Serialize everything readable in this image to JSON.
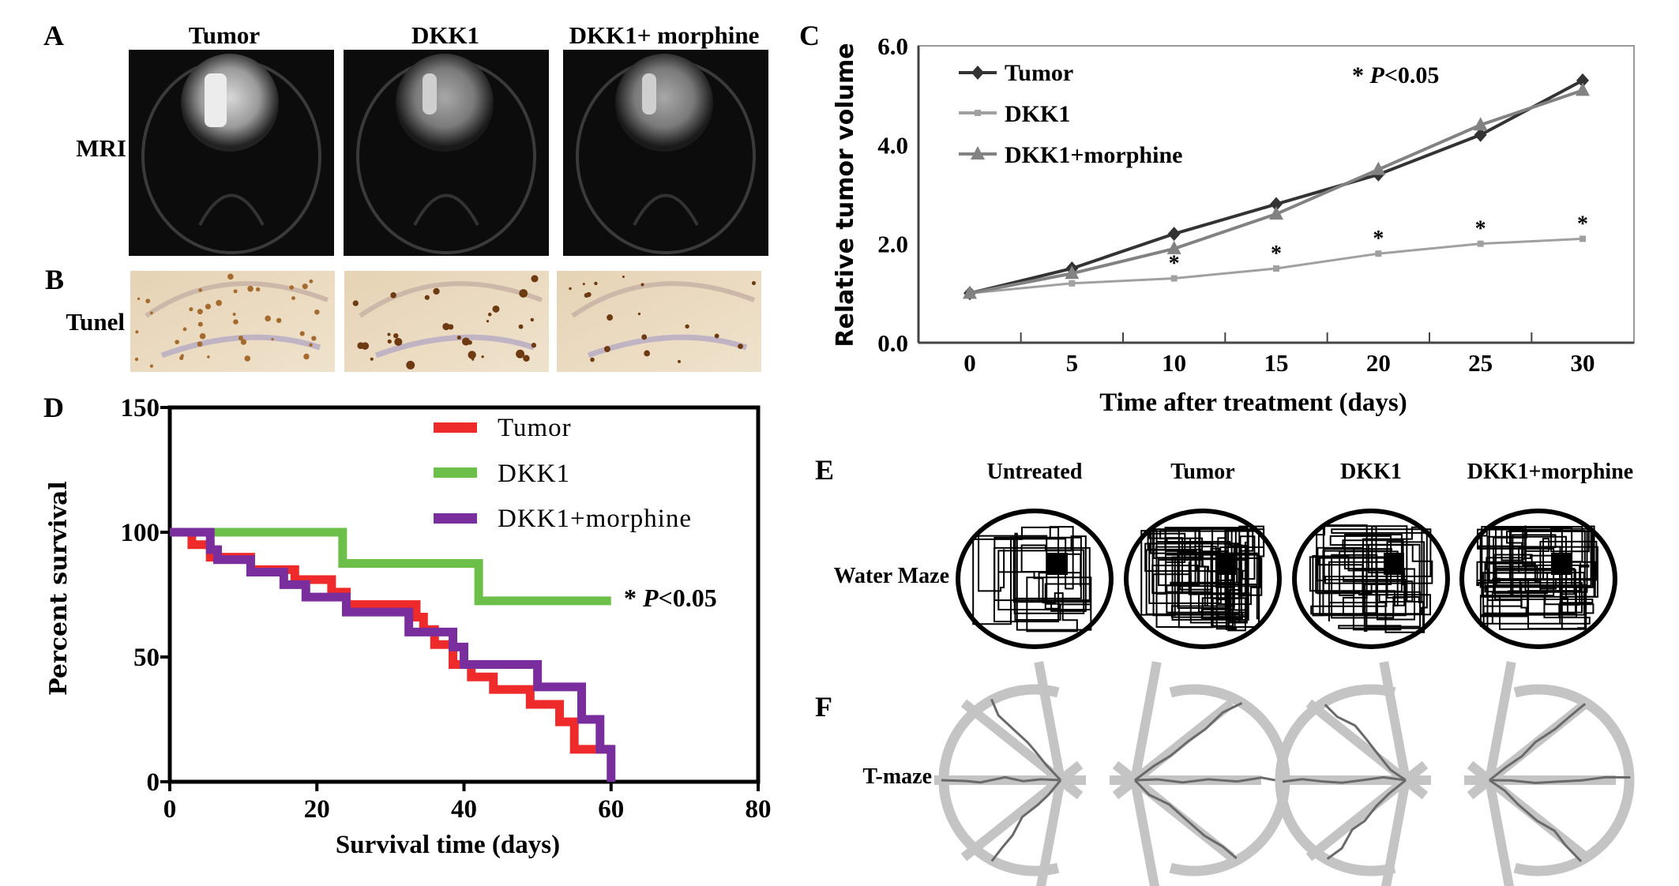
{
  "panel_labels": {
    "a": "A",
    "b": "B",
    "c": "C",
    "d": "D",
    "e": "E",
    "f": "F"
  },
  "panel_a": {
    "columns": [
      "Tumor",
      "DKK1",
      "DKK1+ morphine"
    ],
    "row_label": "MRI"
  },
  "panel_b": {
    "row_label": "Tunel"
  },
  "panel_e": {
    "columns": [
      "Untreated",
      "Tumor",
      "DKK1",
      "DKK1+morphine"
    ],
    "row_label": "Water Maze"
  },
  "panel_f": {
    "row_label": "T-maze"
  },
  "chart_data": [
    {
      "panel": "C",
      "type": "line",
      "xlabel": "Time after treatment (days)",
      "ylabel": "Relative tumor volume",
      "x": [
        0,
        5,
        10,
        15,
        20,
        25,
        30
      ],
      "x_tick_labels": [
        "0",
        "5",
        "10",
        "15",
        "20",
        "25",
        "30"
      ],
      "ylim": [
        0,
        6
      ],
      "y_ticks": [
        0,
        2,
        4,
        6
      ],
      "y_tick_labels": [
        "0.0",
        "2.0",
        "4.0",
        "6.0"
      ],
      "legend_position": "top-left",
      "annotation": {
        "star": "*",
        "p": "P",
        "rest": "<0.05"
      },
      "significance_marker": "*",
      "significant_x": [
        10,
        15,
        20,
        25,
        30
      ],
      "series": [
        {
          "name": "Tumor",
          "marker": "diamond",
          "color": "#333333",
          "values": [
            1.0,
            1.5,
            2.2,
            2.8,
            3.4,
            4.2,
            5.3
          ]
        },
        {
          "name": "DKK1",
          "marker": "square",
          "color": "#a0a0a0",
          "values": [
            1.0,
            1.2,
            1.3,
            1.5,
            1.8,
            2.0,
            2.1
          ]
        },
        {
          "name": "DKK1+morphine",
          "marker": "triangle",
          "color": "#828282",
          "values": [
            1.0,
            1.4,
            1.9,
            2.6,
            3.5,
            4.4,
            5.1
          ]
        }
      ]
    },
    {
      "panel": "D",
      "type": "line",
      "subtype": "kaplan-meier-step",
      "xlabel": "Survival time (days)",
      "ylabel": "Percent survival",
      "xlim": [
        0,
        80
      ],
      "ylim": [
        0,
        150
      ],
      "x_ticks": [
        0,
        20,
        40,
        60,
        80
      ],
      "y_ticks": [
        0,
        50,
        100,
        150
      ],
      "legend_position": "top-right",
      "annotation": {
        "star": "*",
        "p": "P",
        "rest": "<0.05"
      },
      "series": [
        {
          "name": "Tumor",
          "color": "#ee2a2a",
          "steps": [
            [
              0,
              100
            ],
            [
              3,
              95
            ],
            [
              5.5,
              90
            ],
            [
              11,
              85
            ],
            [
              17,
              81
            ],
            [
              22,
              76
            ],
            [
              24,
              71
            ],
            [
              33.5,
              66
            ],
            [
              34.5,
              61
            ],
            [
              36,
              55
            ],
            [
              38.5,
              47
            ],
            [
              41,
              42
            ],
            [
              44,
              37
            ],
            [
              49,
              31
            ],
            [
              53,
              24
            ],
            [
              55,
              13
            ],
            [
              60,
              13
            ]
          ]
        },
        {
          "name": "DKK1",
          "color": "#6cc04a",
          "steps": [
            [
              0,
              100
            ],
            [
              23.5,
              87.5
            ],
            [
              42,
              72.5
            ],
            [
              60,
              72.5
            ]
          ]
        },
        {
          "name": "DKK1+morphine",
          "color": "#7a2d9c",
          "steps": [
            [
              0,
              100
            ],
            [
              5.5,
              93
            ],
            [
              6.5,
              89
            ],
            [
              11,
              84
            ],
            [
              15.5,
              79
            ],
            [
              18.5,
              74
            ],
            [
              24,
              68
            ],
            [
              32.5,
              60
            ],
            [
              38.5,
              54
            ],
            [
              40,
              47
            ],
            [
              50,
              38
            ],
            [
              56,
              25
            ],
            [
              58.5,
              13
            ],
            [
              60,
              13
            ],
            [
              60,
              0
            ]
          ]
        }
      ]
    }
  ]
}
